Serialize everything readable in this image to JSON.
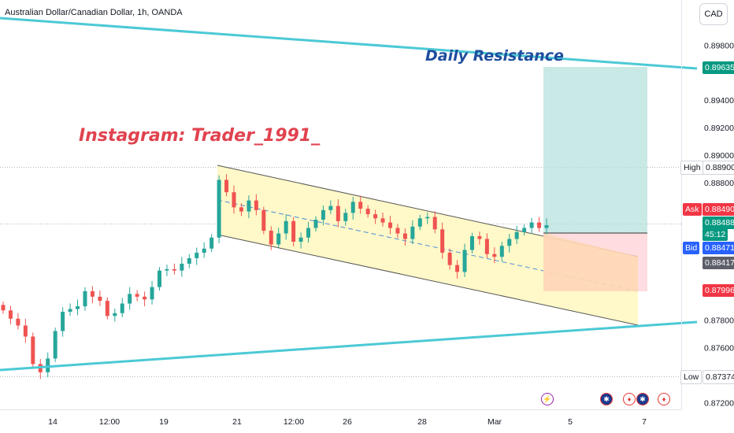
{
  "header": {
    "symbol_title": "Australian Dollar/Canadian Dollar, 1h, OANDA",
    "currency_button": "CAD"
  },
  "annotations": {
    "instagram": "Instagram: Trader_1991_",
    "resistance": "Daily Resistance"
  },
  "price_tags": {
    "target": "0.89635",
    "high_label": "High",
    "high_value": "0.88900",
    "ask_label": "Ask",
    "ask_value": "0.88490",
    "last_value": "0.88488",
    "countdown": "45:12",
    "bid_label": "Bid",
    "bid_value": "0.88471",
    "prev_value": "0.88417",
    "stop_value": "0.87996",
    "low_label": "Low",
    "low_value": "0.87374"
  },
  "events": [
    {
      "name": "flash-event-icon",
      "symbol": "⚡",
      "color": "#9c27b0"
    },
    {
      "name": "au-flag-event-icon",
      "symbol": "✱",
      "color": "#e53935"
    },
    {
      "name": "ca-flag-event-icon-1",
      "symbol": "♦",
      "color": "#e53935"
    },
    {
      "name": "au-flag-event-icon-2",
      "symbol": "✱",
      "color": "#e53935"
    },
    {
      "name": "ca-flag-event-icon-2",
      "symbol": "♦",
      "color": "#e53935"
    }
  ],
  "colors": {
    "up": "#26a69a",
    "down": "#ef5350",
    "trendline": "#4cc9d6",
    "channel_fill": "#fff7c2",
    "target_zone": "#b2dfdb",
    "stop_zone": "#ffcdd2",
    "entry_zone": "#ffd8b0",
    "tag_green": "#089981",
    "tag_red": "#f23645",
    "tag_blue": "#2962ff",
    "tag_gray": "#5d606b"
  },
  "chart_data": {
    "type": "candlestick",
    "symbol": "AUDCAD",
    "interval": "1h",
    "source": "OANDA",
    "x_tick_labels": [
      "14",
      "12:00",
      "19",
      "21",
      "12:00",
      "26",
      "28",
      "Mar",
      "5",
      "7"
    ],
    "y_tick_labels": [
      "0.89800",
      "0.89400",
      "0.89200",
      "0.89000",
      "0.88800",
      "0.87800",
      "0.87600",
      "0.87200"
    ],
    "ylim": [
      0.8715,
      0.901
    ],
    "price_levels": {
      "high": 0.889,
      "ask": 0.8849,
      "last": 0.88488,
      "bid": 0.88471,
      "prev": 0.88417,
      "target": 0.89635,
      "stop": 0.87996,
      "low": 0.87374
    },
    "approx_closes": [
      0.8787,
      0.8781,
      0.8776,
      0.8768,
      0.8748,
      0.8742,
      0.8752,
      0.8772,
      0.8786,
      0.8788,
      0.879,
      0.8801,
      0.8797,
      0.8794,
      0.8783,
      0.8785,
      0.8792,
      0.8799,
      0.8797,
      0.8795,
      0.8804,
      0.8816,
      0.8817,
      0.8816,
      0.8821,
      0.8825,
      0.8829,
      0.8832,
      0.884,
      0.8882,
      0.8873,
      0.8862,
      0.8859,
      0.8867,
      0.886,
      0.8845,
      0.8835,
      0.8843,
      0.8852,
      0.8837,
      0.884,
      0.8847,
      0.8853,
      0.886,
      0.8863,
      0.8852,
      0.8858,
      0.8866,
      0.8861,
      0.8857,
      0.8854,
      0.8851,
      0.8847,
      0.8843,
      0.8839,
      0.8848,
      0.8854,
      0.8855,
      0.8846,
      0.8829,
      0.882,
      0.8815,
      0.8831,
      0.8841,
      0.8839,
      0.8828,
      0.8826,
      0.8834,
      0.8839,
      0.8844,
      0.8847,
      0.8851,
      0.8847,
      0.8849
    ]
  }
}
